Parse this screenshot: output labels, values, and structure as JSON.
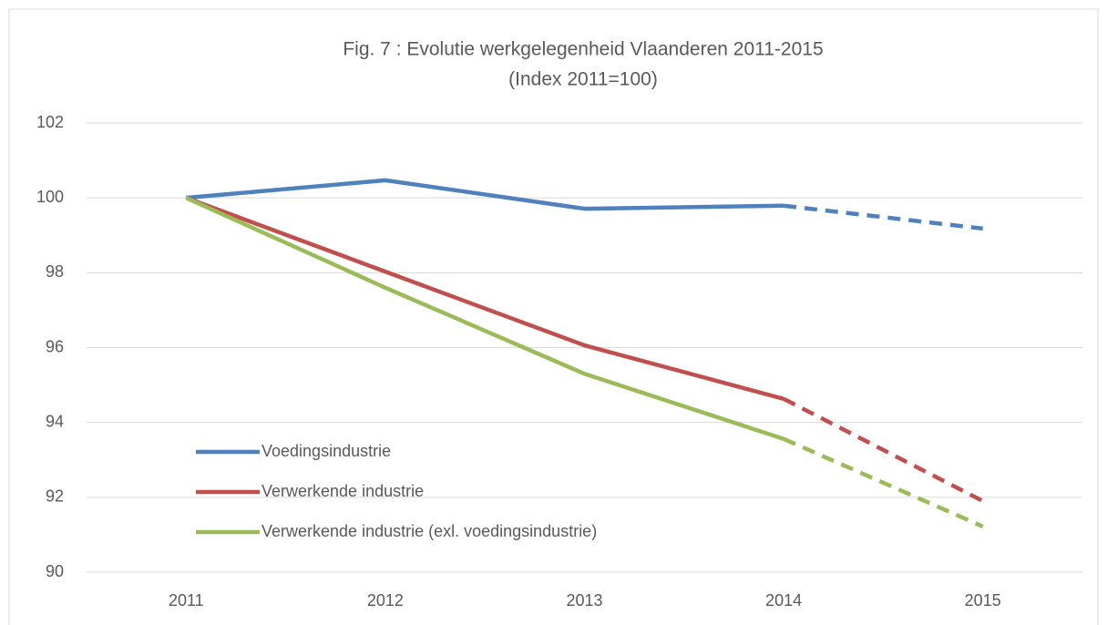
{
  "chart_data": {
    "type": "line",
    "title": "Fig. 7 : Evolutie werkgelegenheid Vlaanderen 2011-2015",
    "subtitle": "(Index 2011=100)",
    "categories": [
      "2011",
      "2012",
      "2013",
      "2014",
      "2015"
    ],
    "series": [
      {
        "name": "Voedingsindustrie",
        "color": "#4f81bd",
        "values": [
          100,
          100.47,
          99.71,
          99.79,
          99.18
        ]
      },
      {
        "name": "Verwerkende industrie",
        "color": "#c0504d",
        "values": [
          100,
          98.03,
          96.06,
          94.63,
          91.9
        ]
      },
      {
        "name": "Verwerkende industrie (exl. voedingsindustrie)",
        "color": "#9bbb59",
        "values": [
          100,
          97.6,
          95.3,
          93.56,
          91.22
        ]
      }
    ],
    "dashed_from_index": 3,
    "ylim": [
      90,
      102
    ],
    "yticks": [
      90,
      92,
      94,
      96,
      98,
      100,
      102
    ],
    "grid": true,
    "legend": "bottom-left"
  }
}
